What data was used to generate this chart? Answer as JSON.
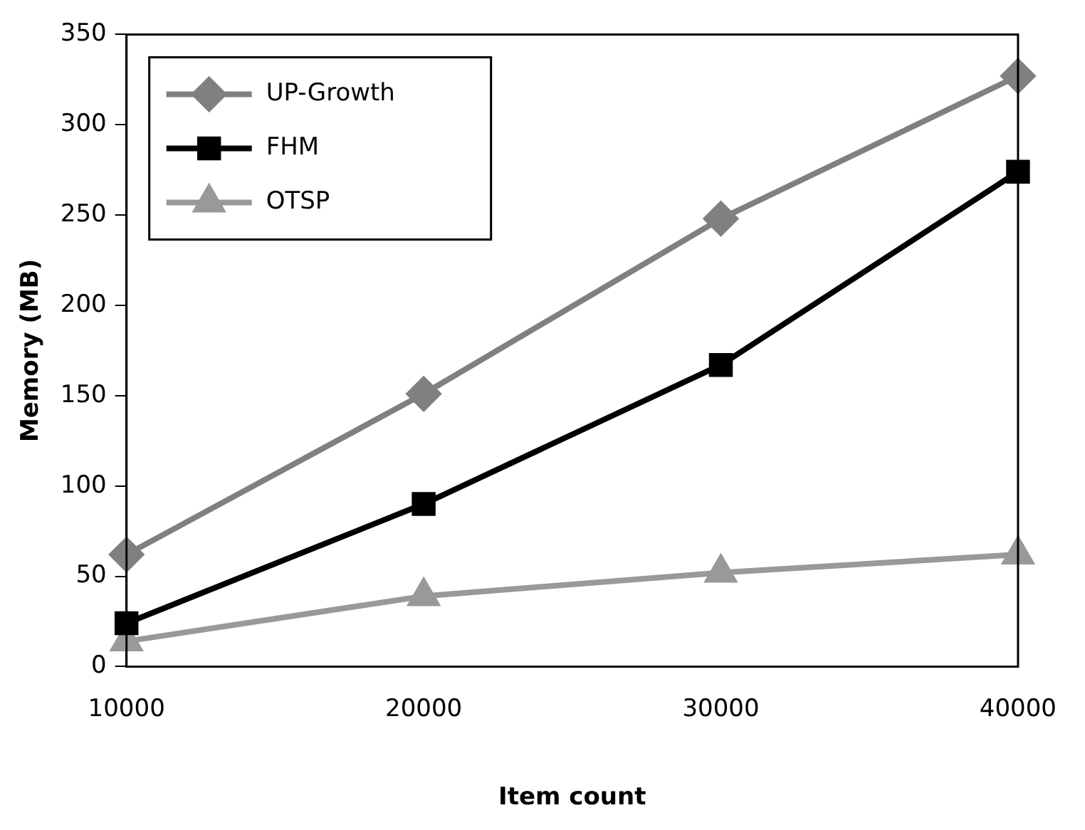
{
  "chart_data": {
    "type": "line",
    "xlabel": "Item count",
    "ylabel": "Memory (MB)",
    "x": [
      10000,
      20000,
      30000,
      40000
    ],
    "series": [
      {
        "name": "UP-Growth",
        "color": "#808080",
        "marker": "diamond",
        "values": [
          62,
          151,
          248,
          327
        ]
      },
      {
        "name": "FHM",
        "color": "#000000",
        "marker": "square",
        "values": [
          24,
          90,
          167,
          274
        ]
      },
      {
        "name": "OTSP",
        "color": "#999999",
        "marker": "triangle",
        "values": [
          14,
          39,
          52,
          62
        ]
      }
    ],
    "xlim": [
      10000,
      40000
    ],
    "xticks": [
      10000,
      20000,
      30000,
      40000
    ],
    "ylim": [
      0,
      350
    ],
    "yticks": [
      0,
      50,
      100,
      150,
      200,
      250,
      300,
      350
    ],
    "grid": false,
    "legend": "top left",
    "line_style": "solid"
  }
}
